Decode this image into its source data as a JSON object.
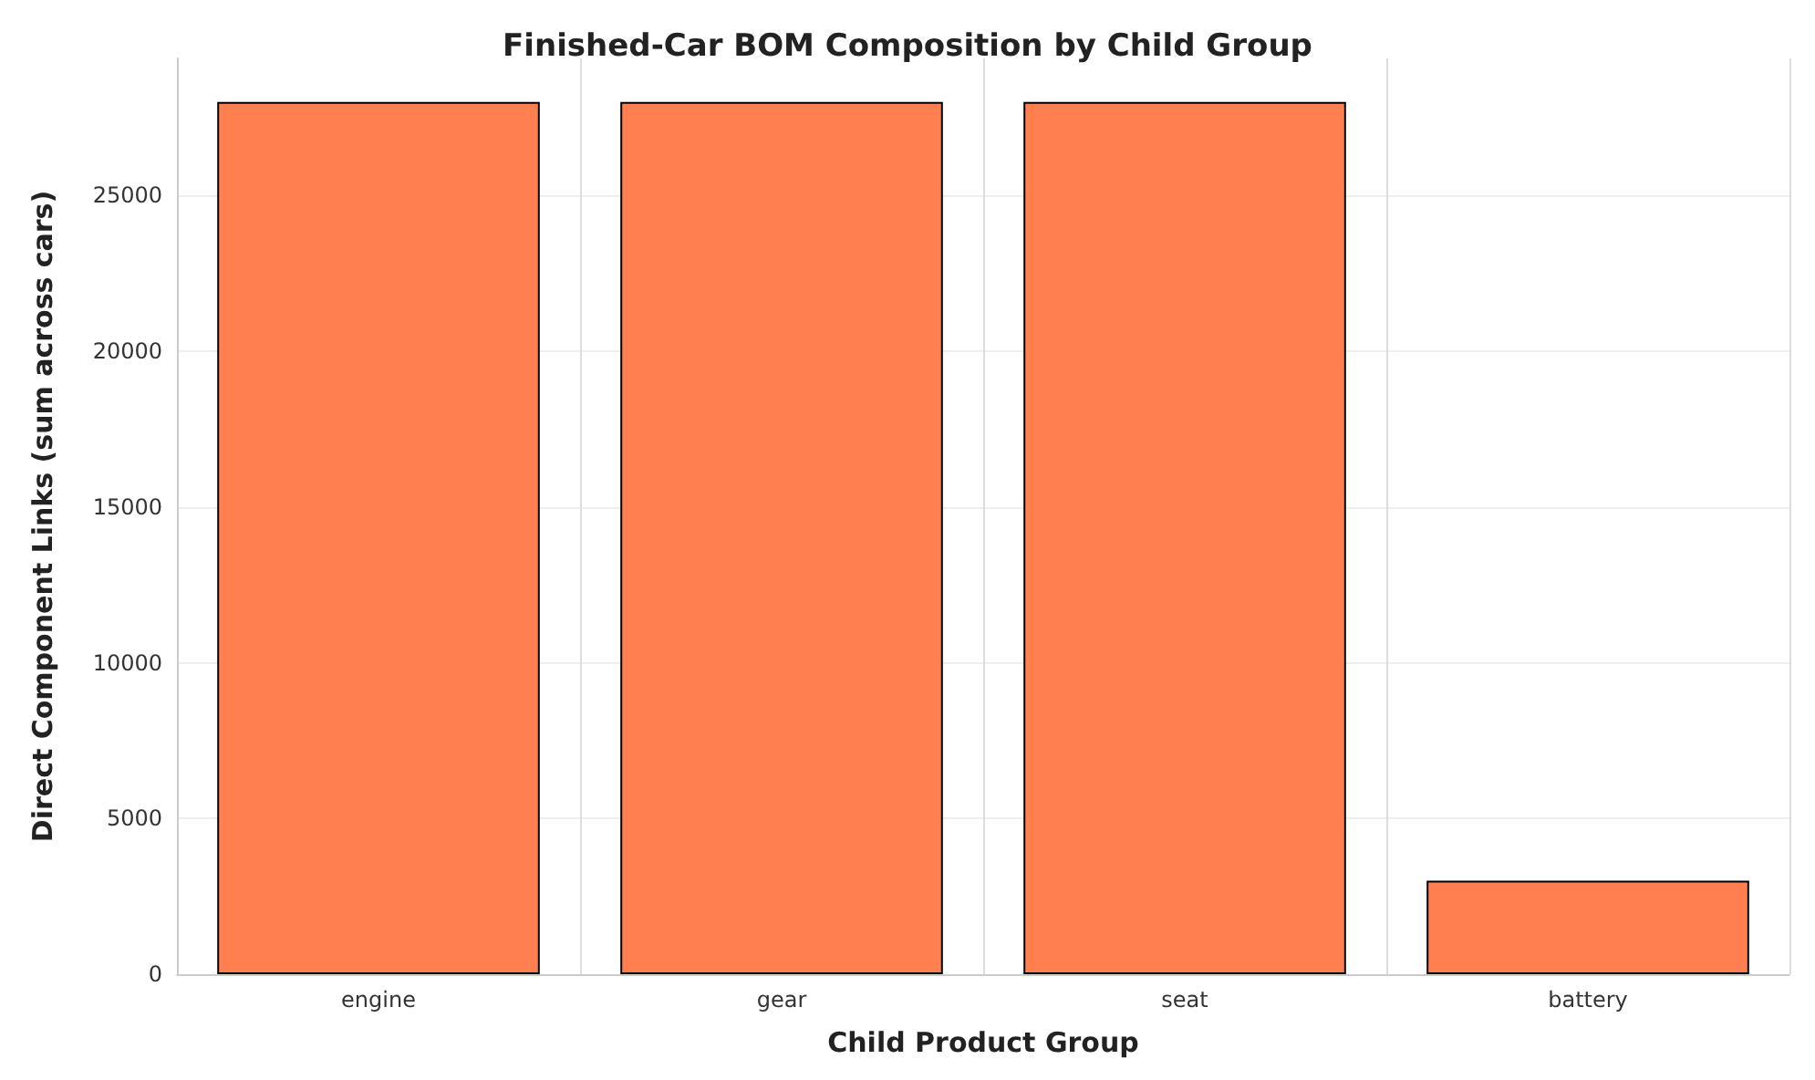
{
  "chart_data": {
    "type": "bar",
    "title": "Finished-Car BOM Composition by Child Group",
    "xlabel": "Child Product Group",
    "ylabel": "Direct Component Links (sum across cars)",
    "categories": [
      "engine",
      "gear",
      "seat",
      "battery"
    ],
    "values": [
      28000,
      28000,
      28000,
      3000
    ],
    "color": "#ff7f50",
    "ylim": [
      0,
      29400
    ],
    "yticks": [
      0,
      5000,
      10000,
      15000,
      20000,
      25000
    ],
    "grid": true
  }
}
